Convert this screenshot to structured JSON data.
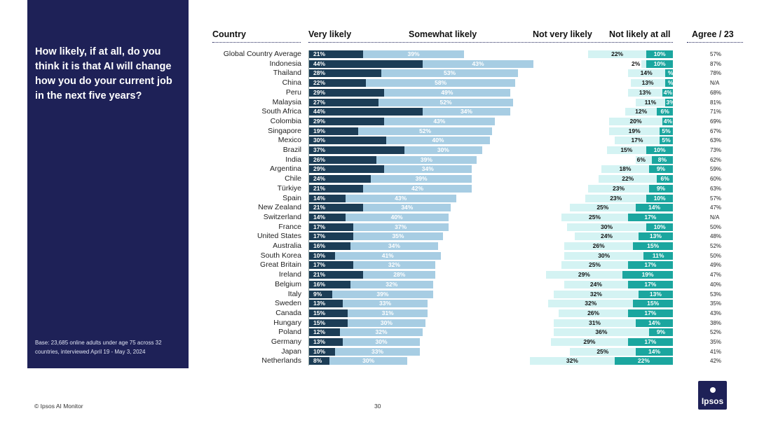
{
  "question": "How likely, if at all, do you think it is that AI will change how you do your current job in the next five years?",
  "base_note": "Base: 23,685 online adults under age 75 across 32 countries, interviewed April 19 - May 3, 2024",
  "footer_source": "© Ipsos AI Monitor",
  "page_number": "30",
  "logo_text": "Ipsos",
  "headers": {
    "country": "Country",
    "very": "Very likely",
    "somewhat": "Somewhat likely",
    "notvery": "Not very likely",
    "notatall": "Not likely at all",
    "agree": "Agree / 23"
  },
  "colors": {
    "very": "#1c3d56",
    "somewhat": "#a7cde3",
    "notvery": "#d4f3f3",
    "notatall": "#1ba69f",
    "sidebar": "#1e2157"
  },
  "chart_data": {
    "type": "bar",
    "stacked": "diverging",
    "title": "How likely, if at all, do you think it is that AI will change how you do your current job in the next five years?",
    "categories": [
      "Global Country Average",
      "Indonesia",
      "Thailand",
      "China",
      "Peru",
      "Malaysia",
      "South Africa",
      "Colombia",
      "Singapore",
      "Mexico",
      "Brazil",
      "India",
      "Argentina",
      "Chile",
      "Türkiye",
      "Spain",
      "New Zealand",
      "Switzerland",
      "France",
      "United States",
      "Australia",
      "South Korea",
      "Great Britain",
      "Ireland",
      "Belgium",
      "Italy",
      "Sweden",
      "Canada",
      "Hungary",
      "Poland",
      "Germany",
      "Japan",
      "Netherlands"
    ],
    "series": [
      {
        "name": "Very likely",
        "values": [
          21,
          44,
          28,
          22,
          29,
          27,
          44,
          29,
          19,
          30,
          37,
          26,
          29,
          24,
          21,
          14,
          21,
          14,
          17,
          17,
          16,
          10,
          17,
          21,
          16,
          9,
          13,
          15,
          15,
          12,
          13,
          10,
          8
        ]
      },
      {
        "name": "Somewhat likely",
        "values": [
          39,
          43,
          53,
          58,
          49,
          52,
          34,
          43,
          52,
          40,
          30,
          39,
          34,
          39,
          42,
          43,
          34,
          40,
          37,
          35,
          34,
          41,
          32,
          28,
          32,
          39,
          33,
          31,
          30,
          32,
          30,
          33,
          30
        ]
      },
      {
        "name": "Not very likely",
        "values": [
          22,
          2,
          14,
          13,
          13,
          11,
          12,
          20,
          19,
          17,
          15,
          6,
          18,
          22,
          23,
          23,
          25,
          25,
          30,
          24,
          26,
          30,
          25,
          29,
          24,
          32,
          32,
          26,
          31,
          36,
          29,
          25,
          32
        ]
      },
      {
        "name": "Not likely at all",
        "values": [
          10,
          10,
          3,
          3,
          4,
          3,
          6,
          4,
          5,
          5,
          10,
          8,
          9,
          6,
          9,
          10,
          14,
          17,
          10,
          13,
          15,
          11,
          17,
          19,
          17,
          13,
          15,
          17,
          14,
          9,
          17,
          14,
          22
        ]
      }
    ],
    "series_labels": [
      [
        "21%",
        "44%",
        "28%",
        "22%",
        "29%",
        "27%",
        "44%",
        "29%",
        "19%",
        "30%",
        "37%",
        "26%",
        "29%",
        "24%",
        "21%",
        "14%",
        "21%",
        "14%",
        "17%",
        "17%",
        "16%",
        "10%",
        "17%",
        "21%",
        "16%",
        "9%",
        "13%",
        "15%",
        "15%",
        "12%",
        "13%",
        "10%",
        "8%"
      ],
      [
        "39%",
        "43%",
        "53%",
        "58%",
        "49%",
        "52%",
        "34%",
        "43%",
        "52%",
        "40%",
        "30%",
        "39%",
        "34%",
        "39%",
        "42%",
        "43%",
        "34%",
        "40%",
        "37%",
        "35%",
        "34%",
        "41%",
        "32%",
        "28%",
        "32%",
        "39%",
        "33%",
        "31%",
        "30%",
        "32%",
        "30%",
        "33%",
        "30%"
      ],
      [
        "22%",
        "2%",
        "14%",
        "13%",
        "13%",
        "11%",
        "12%",
        "20%",
        "19%",
        "17%",
        "15%",
        "6%",
        "18%",
        "22%",
        "23%",
        "23%",
        "25%",
        "25%",
        "30%",
        "24%",
        "26%",
        "30%",
        "25%",
        "29%",
        "24%",
        "32%",
        "32%",
        "26%",
        "31%",
        "36%",
        "29%",
        "25%",
        "32%"
      ],
      [
        "10%",
        "10%",
        "%",
        "%",
        "4%",
        "3%",
        "6%",
        "4%",
        "5%",
        "5%",
        "10%",
        "8%",
        "9%",
        "6%",
        "9%",
        "10%",
        "14%",
        "17%",
        "10%",
        "13%",
        "15%",
        "11%",
        "17%",
        "19%",
        "17%",
        "13%",
        "15%",
        "17%",
        "14%",
        "9%",
        "17%",
        "14%",
        "22%"
      ]
    ],
    "agree_labels": [
      "57%",
      "87%",
      "78%",
      "N/A",
      "68%",
      "81%",
      "71%",
      "69%",
      "67%",
      "63%",
      "73%",
      "62%",
      "59%",
      "60%",
      "63%",
      "57%",
      "47%",
      "N/A",
      "50%",
      "48%",
      "52%",
      "50%",
      "49%",
      "47%",
      "40%",
      "53%",
      "35%",
      "43%",
      "38%",
      "52%",
      "35%",
      "41%",
      "42%"
    ],
    "xlim": [
      0,
      100
    ]
  }
}
